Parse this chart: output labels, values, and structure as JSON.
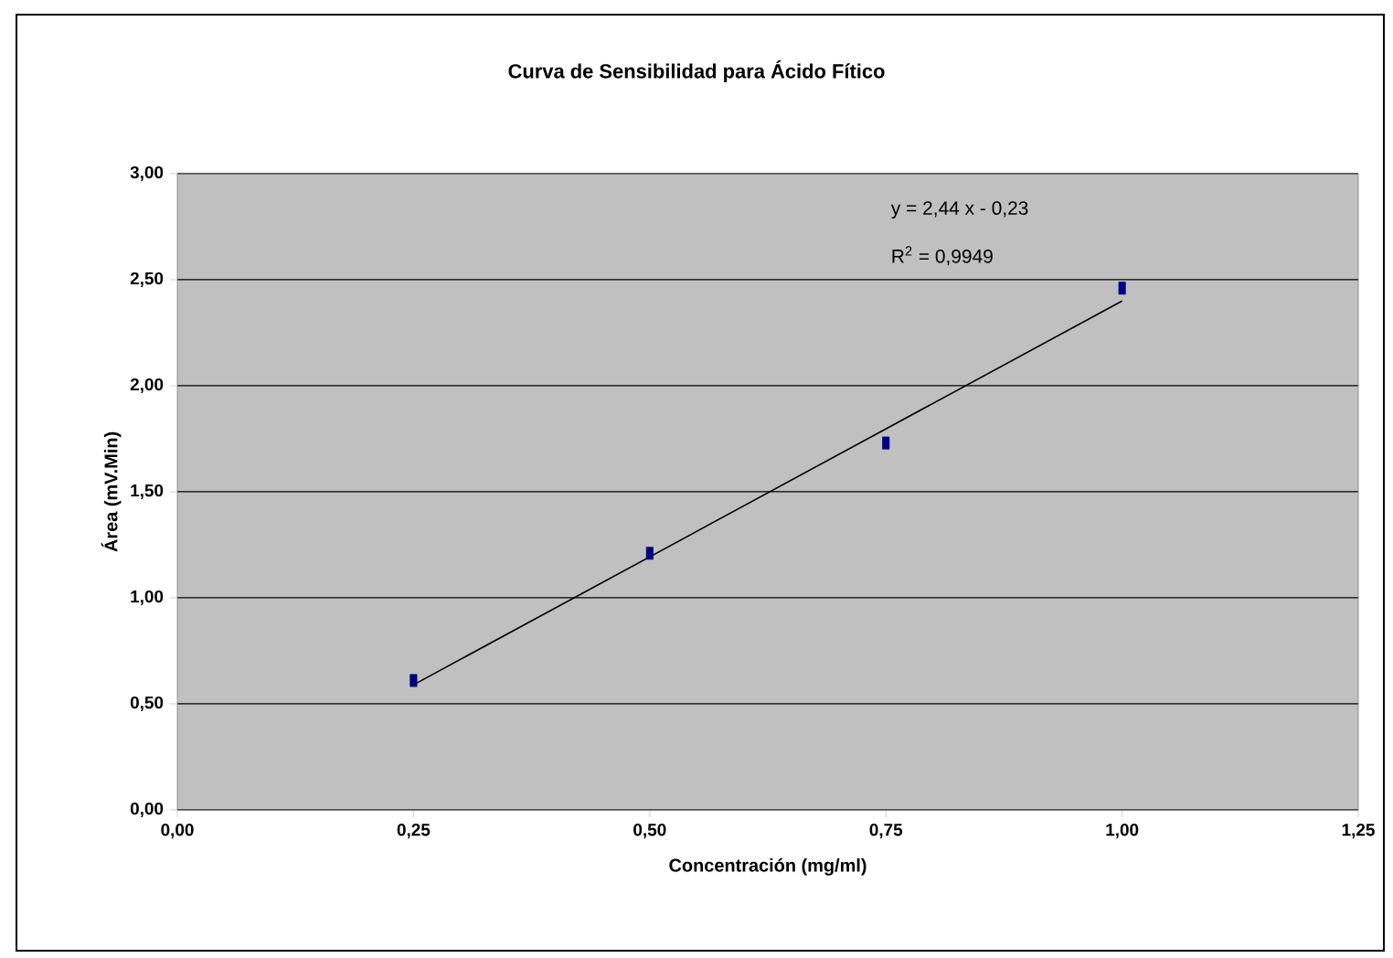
{
  "chart_data": {
    "type": "scatter",
    "title": "Curva de Sensibilidad para Ácido Fítico",
    "xlabel": "Concentración (mg/ml)",
    "ylabel": "Área (mV.Min)",
    "annotations": [
      "y = 2,44 x - 0,23",
      "R$^{2}$ = 0,9949"
    ],
    "xlim": [
      0,
      1.25
    ],
    "ylim": [
      0,
      3
    ],
    "xticks": [
      {
        "value": 0,
        "label": "0,00"
      },
      {
        "value": 0.25,
        "label": "0,25"
      },
      {
        "value": 0.5,
        "label": "0,50"
      },
      {
        "value": 0.75,
        "label": "0,75"
      },
      {
        "value": 1,
        "label": "1,00"
      },
      {
        "value": 1.25,
        "label": "1,25"
      }
    ],
    "yticks": [
      {
        "value": 0,
        "label": "0,00"
      },
      {
        "value": 0.5,
        "label": "0,50"
      },
      {
        "value": 1,
        "label": "1,00"
      },
      {
        "value": 1.5,
        "label": "1,50"
      },
      {
        "value": 2,
        "label": "2,00"
      },
      {
        "value": 2.5,
        "label": "2,50"
      },
      {
        "value": 3,
        "label": "3,00"
      }
    ],
    "grid": "y",
    "marker": "square",
    "series": [
      {
        "color": "#000080",
        "x": [
          0.25,
          0.5,
          0.75,
          1.0
        ],
        "values": [
          0.61,
          1.21,
          1.73,
          2.46
        ]
      },
      {
        "type": "line",
        "color": "#000000",
        "marker": "none",
        "x": [
          0.25,
          1.0
        ],
        "values": [
          0.59,
          2.4
        ]
      }
    ]
  }
}
